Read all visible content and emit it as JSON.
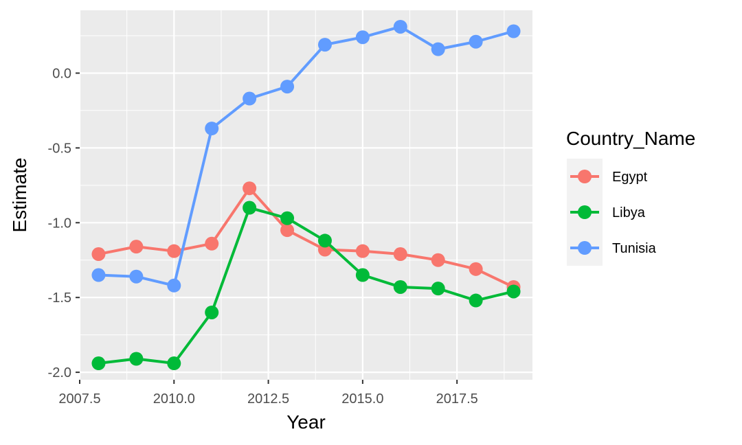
{
  "chart_data": {
    "type": "line",
    "xlabel": "Year",
    "ylabel": "Estimate",
    "xlim": [
      2007.5,
      2019.5
    ],
    "ylim": [
      -2.05,
      0.42
    ],
    "x_ticks": [
      2007.5,
      2010.0,
      2012.5,
      2015.0,
      2017.5
    ],
    "x_tick_labels": [
      "2007.5",
      "2010.0",
      "2012.5",
      "2015.0",
      "2017.5"
    ],
    "y_ticks": [
      0.0,
      -0.5,
      -1.0,
      -1.5,
      -2.0
    ],
    "y_tick_labels": [
      "0.0",
      "-0.5",
      "-1.0",
      "-1.5",
      "-2.0"
    ],
    "grid": true,
    "legend": {
      "title": "Country_Name",
      "placement": "right"
    },
    "x": [
      2008,
      2009,
      2010,
      2011,
      2012,
      2013,
      2014,
      2015,
      2016,
      2017,
      2018,
      2019
    ],
    "series": [
      {
        "name": "Egypt",
        "color": "#F8766D",
        "values": [
          -1.21,
          -1.16,
          -1.19,
          -1.14,
          -0.77,
          -1.05,
          -1.18,
          -1.19,
          -1.21,
          -1.25,
          -1.31,
          -1.43
        ]
      },
      {
        "name": "Libya",
        "color": "#00BA38",
        "values": [
          -1.94,
          -1.91,
          -1.94,
          -1.6,
          -0.9,
          -0.97,
          -1.12,
          -1.35,
          -1.43,
          -1.44,
          -1.52,
          -1.46
        ]
      },
      {
        "name": "Tunisia",
        "color": "#619CFF",
        "values": [
          -1.35,
          -1.36,
          -1.42,
          -0.37,
          -0.17,
          -0.09,
          0.19,
          0.24,
          0.31,
          0.16,
          0.21,
          0.28
        ]
      }
    ]
  }
}
